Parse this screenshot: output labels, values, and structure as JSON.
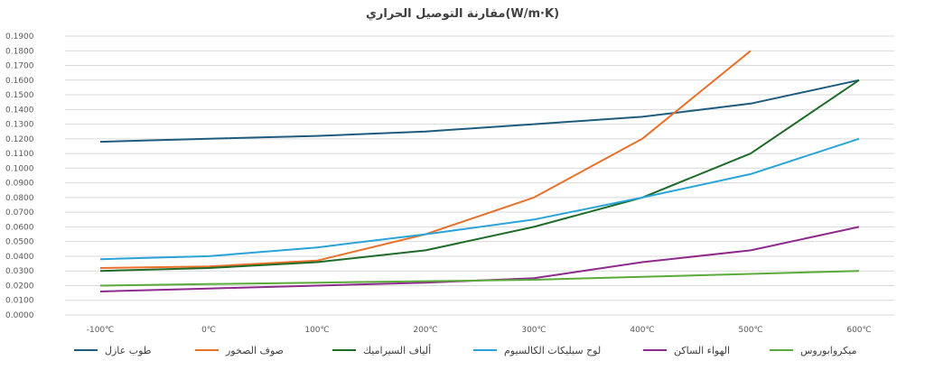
{
  "chart_data": {
    "type": "line",
    "title": "مقارنة التوصيل الحراري(W/m·K)",
    "xlabel": "",
    "ylabel": "",
    "categories": [
      "-100℃",
      "0℃",
      "100℃",
      "200℃",
      "300℃",
      "400℃",
      "500℃",
      "600℃"
    ],
    "ylim": [
      0,
      0.19
    ],
    "yticks": [
      "0.0000",
      "0.0100",
      "0.0200",
      "0.0300",
      "0.0400",
      "0.0500",
      "0.0600",
      "0.0700",
      "0.0800",
      "0.0900",
      "0.1000",
      "0.1100",
      "0.1200",
      "0.1300",
      "0.1400",
      "0.1500",
      "0.1600",
      "0.1700",
      "0.1800",
      "0.1900"
    ],
    "grid": true,
    "legend_position": "bottom",
    "series": [
      {
        "name": "طوب عازل",
        "color": "#1f5b7e",
        "values": [
          0.118,
          0.12,
          0.122,
          0.125,
          0.13,
          0.135,
          0.144,
          0.16
        ]
      },
      {
        "name": "صوف الصخور",
        "color": "#e8702a",
        "values": [
          0.032,
          0.033,
          0.037,
          0.055,
          0.08,
          0.12,
          0.18,
          null
        ]
      },
      {
        "name": "ألياف السيراميك",
        "color": "#1f6b2a",
        "values": [
          0.03,
          0.032,
          0.036,
          0.044,
          0.06,
          0.08,
          0.11,
          0.16
        ]
      },
      {
        "name": "لوح سيليكات الكالسيوم",
        "color": "#2aa3d9",
        "values": [
          0.038,
          0.04,
          0.046,
          0.055,
          0.065,
          0.08,
          0.096,
          0.12
        ]
      },
      {
        "name": "الهواء الساكن",
        "color": "#8e2a8c",
        "values": [
          0.016,
          0.018,
          0.02,
          0.022,
          0.025,
          0.036,
          0.044,
          0.06
        ]
      },
      {
        "name": "ميكروابوروس",
        "color": "#5aaa3c",
        "values": [
          0.02,
          0.021,
          0.022,
          0.023,
          0.024,
          0.026,
          0.028,
          0.03
        ]
      }
    ]
  }
}
